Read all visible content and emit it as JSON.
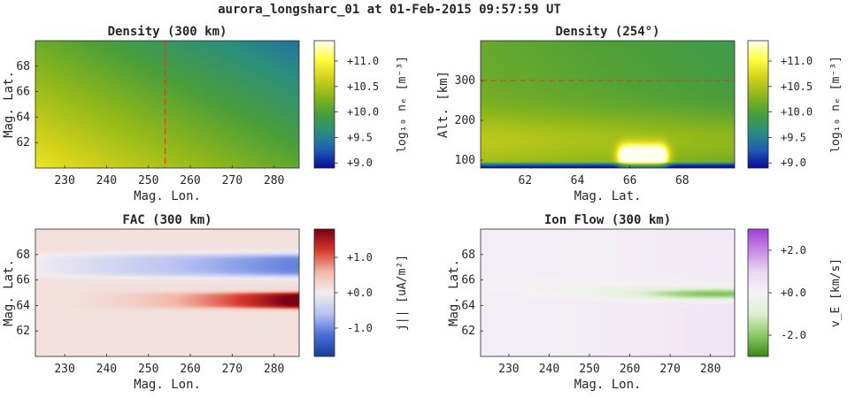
{
  "figure": {
    "suptitle": "aurora_longsharc_01 at 01-Feb-2015 09:57:59 UT"
  },
  "colors": {
    "density_cmap": [
      "#0a0c9a",
      "#1f5fb4",
      "#2b8f7e",
      "#4a9e3a",
      "#8fb81a",
      "#d4d21a",
      "#ffff40",
      "#ffffee"
    ],
    "fac_cmap": [
      "#163f9c",
      "#4a6fd8",
      "#b9c3f2",
      "#f2eef0",
      "#f3b8a8",
      "#d83a2c",
      "#7a0013"
    ],
    "flow_cmap": [
      "#3a8c14",
      "#8ccb6a",
      "#dff0d2",
      "#f5f2f5",
      "#ead8f2",
      "#c98be6",
      "#a040d8"
    ],
    "cut_line": "#d04020",
    "axis": "#262626"
  },
  "chart_data": [
    {
      "id": "density-300km",
      "type": "heatmap",
      "title": "Density (300 km)",
      "xlabel": "Mag. Lon.",
      "ylabel": "Mag. Lat.",
      "xlim": [
        223,
        286
      ],
      "ylim": [
        60,
        70
      ],
      "xticks": [
        "230",
        "240",
        "250",
        "260",
        "270",
        "280"
      ],
      "xtick_values": [
        230,
        240,
        250,
        260,
        270,
        280
      ],
      "yticks": [
        "62",
        "64",
        "66",
        "68"
      ],
      "ytick_values": [
        62,
        64,
        66,
        68
      ],
      "cut_line": {
        "orientation": "vertical",
        "value": 254
      },
      "colorbar": {
        "label": "log₁₀ nₑ [m⁻³]",
        "range": [
          8.9,
          11.4
        ],
        "ticks": [
          "+9.0",
          "+9.5",
          "+10.0",
          "+10.5",
          "+11.0"
        ],
        "tick_values": [
          9.0,
          9.5,
          10.0,
          10.5,
          11.0
        ]
      },
      "approx_values": {
        "corner_lowlat_lowlon": 10.8,
        "corner_highlat_highlon": 10.0
      }
    },
    {
      "id": "density-254deg",
      "type": "heatmap",
      "title": "Density (254°)",
      "xlabel": "Mag. Lat.",
      "ylabel": "Alt. [km]",
      "xlim": [
        60.3,
        70
      ],
      "ylim": [
        80,
        400
      ],
      "xticks": [
        "62",
        "64",
        "66",
        "68"
      ],
      "xtick_values": [
        62,
        64,
        66,
        68
      ],
      "yticks": [
        "100",
        "200",
        "300"
      ],
      "ytick_values": [
        100,
        200,
        300
      ],
      "cut_line": {
        "orientation": "horizontal",
        "value": 300
      },
      "colorbar": {
        "label": "log₁₀ nₑ [m⁻³]",
        "range": [
          8.9,
          11.4
        ],
        "ticks": [
          "+9.0",
          "+9.5",
          "+10.0",
          "+10.5",
          "+11.0"
        ],
        "tick_values": [
          9.0,
          9.5,
          10.0,
          10.5,
          11.0
        ]
      },
      "approx_values": {
        "enhancement_lat_range": [
          65.6,
          67.4
        ],
        "enhancement_peak_alt_km": 110,
        "enhancement_peak": 11.4
      }
    },
    {
      "id": "fac-300km",
      "type": "heatmap",
      "title": "FAC (300 km)",
      "xlabel": "Mag. Lon.",
      "ylabel": "Mag. Lat.",
      "xlim": [
        223,
        286
      ],
      "ylim": [
        60,
        70
      ],
      "xticks": [
        "230",
        "240",
        "250",
        "260",
        "270",
        "280"
      ],
      "xtick_values": [
        230,
        240,
        250,
        260,
        270,
        280
      ],
      "yticks": [
        "62",
        "64",
        "66",
        "68"
      ],
      "ytick_values": [
        62,
        64,
        66,
        68
      ],
      "colorbar": {
        "label": "j|| [uA/m²]",
        "range": [
          -1.8,
          1.8
        ],
        "ticks": [
          "-1.0",
          "+0.0",
          "+1.0"
        ],
        "tick_values": [
          -1.0,
          0.0,
          1.0
        ]
      },
      "approx_values": {
        "downward_band_lat": [
          66.3,
          68.0
        ],
        "upward_band_lat": [
          63.8,
          65.0
        ]
      }
    },
    {
      "id": "ion-flow-300km",
      "type": "heatmap",
      "title": "Ion Flow (300 km)",
      "xlabel": "Mag. Lon.",
      "ylabel": "Mag. Lat.",
      "xlim": [
        223,
        286
      ],
      "ylim": [
        60,
        70
      ],
      "xticks": [
        "230",
        "240",
        "250",
        "260",
        "270",
        "280"
      ],
      "xtick_values": [
        230,
        240,
        250,
        260,
        270,
        280
      ],
      "yticks": [
        "62",
        "64",
        "66",
        "68"
      ],
      "ytick_values": [
        62,
        64,
        66,
        68
      ],
      "colorbar": {
        "label": "v_E [km/s]",
        "range": [
          -3,
          3
        ],
        "ticks": [
          "-2.0",
          "+0.0",
          "+2.0"
        ],
        "tick_values": [
          -2.0,
          0.0,
          2.0
        ]
      },
      "approx_values": {
        "flow_channel_lat": 64.9,
        "flow_channel_min": -2.3
      }
    }
  ]
}
